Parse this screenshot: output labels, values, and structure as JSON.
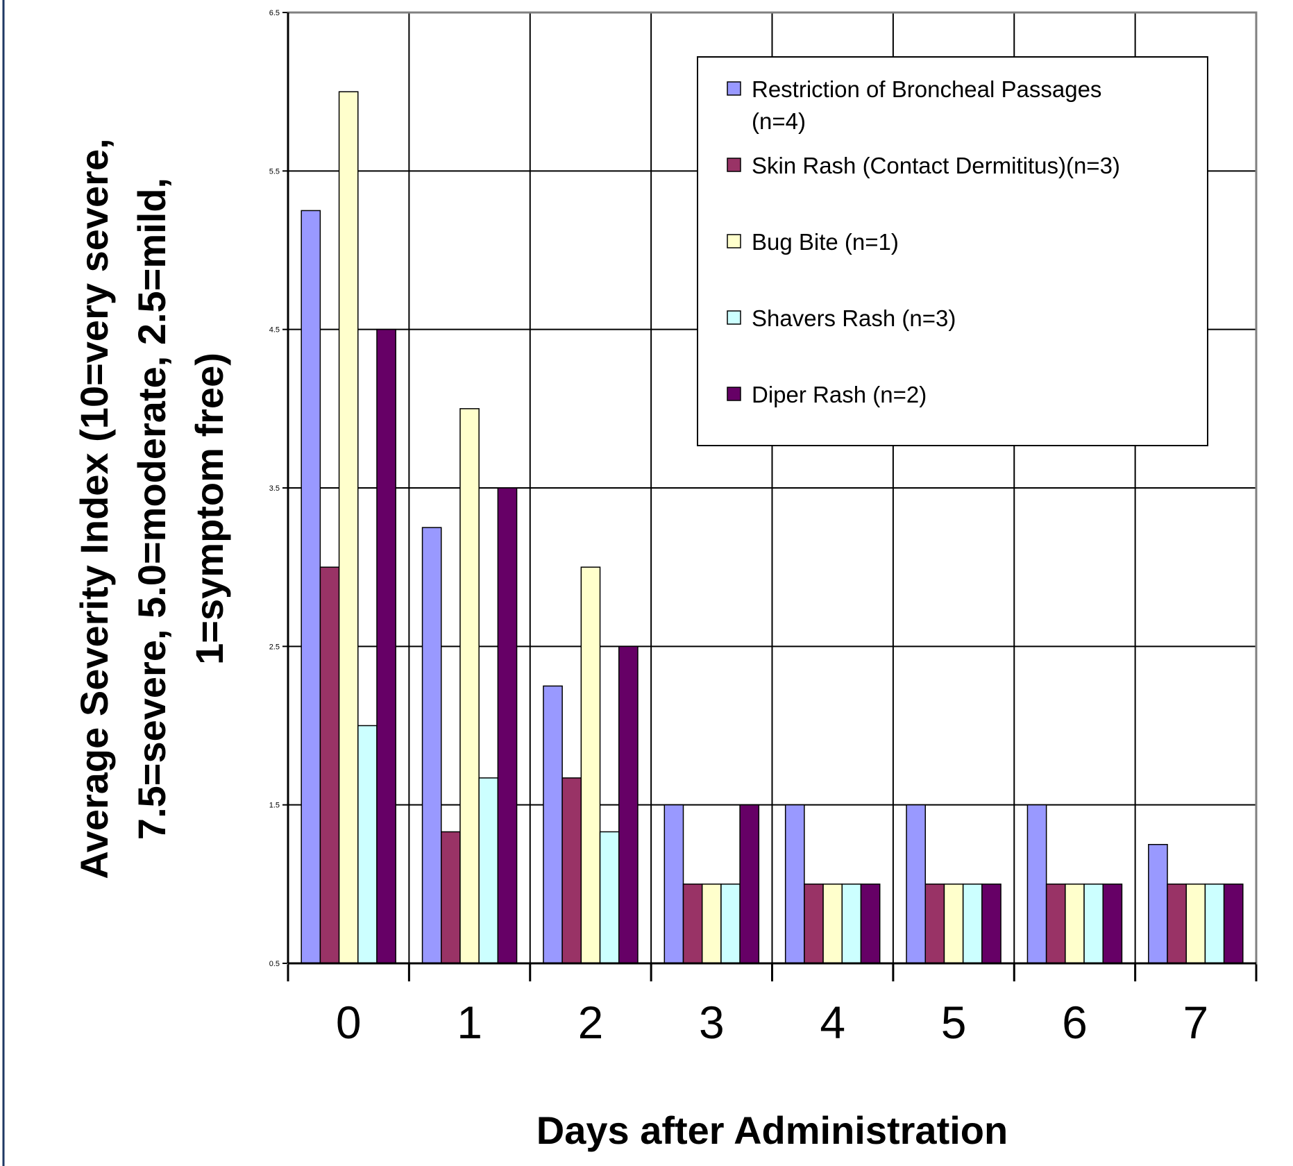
{
  "chart_data": {
    "type": "bar",
    "title": "",
    "xlabel": "Days after Administration",
    "ylabel_lines": [
      "Average Severity Index (10=very severe,",
      "7.5=severe, 5.0=moderate, 2.5=mild,",
      "1=symptom free)"
    ],
    "categories": [
      "0",
      "1",
      "2",
      "3",
      "4",
      "5",
      "6",
      "7"
    ],
    "ylim": [
      0.5,
      6.5
    ],
    "yticks": [
      "0.5",
      "1.5",
      "2.5",
      "3.5",
      "4.5",
      "5.5",
      "6.5"
    ],
    "grid": true,
    "legend_position": "top-right",
    "series": [
      {
        "name": "Restriction of Broncheal  Passages (n=4)",
        "legend_lines": [
          "Restriction of Broncheal  Passages",
          "(n=4)"
        ],
        "color": "#9999ff",
        "values": [
          5.25,
          3.25,
          2.25,
          1.5,
          1.5,
          1.5,
          1.5,
          1.25
        ]
      },
      {
        "name": "Skin Rash (Contact Dermititus)(n=3)",
        "legend_lines": [
          "Skin Rash (Contact Dermititus)(n=3)"
        ],
        "color": "#993366",
        "values": [
          3.0,
          1.33,
          1.67,
          1.0,
          1.0,
          1.0,
          1.0,
          1.0
        ]
      },
      {
        "name": "Bug Bite (n=1)",
        "legend_lines": [
          "Bug Bite (n=1)"
        ],
        "color": "#ffffcc",
        "values": [
          6.0,
          4.0,
          3.0,
          1.0,
          1.0,
          1.0,
          1.0,
          1.0
        ]
      },
      {
        "name": "Shavers Rash (n=3)",
        "legend_lines": [
          "Shavers Rash (n=3)"
        ],
        "color": "#ccffff",
        "values": [
          2.0,
          1.67,
          1.33,
          1.0,
          1.0,
          1.0,
          1.0,
          1.0
        ]
      },
      {
        "name": "Diper Rash (n=2)",
        "legend_lines": [
          "Diper Rash (n=2)"
        ],
        "color": "#660066",
        "values": [
          4.5,
          3.5,
          2.5,
          1.5,
          1.0,
          1.0,
          1.0,
          1.0
        ]
      }
    ]
  }
}
